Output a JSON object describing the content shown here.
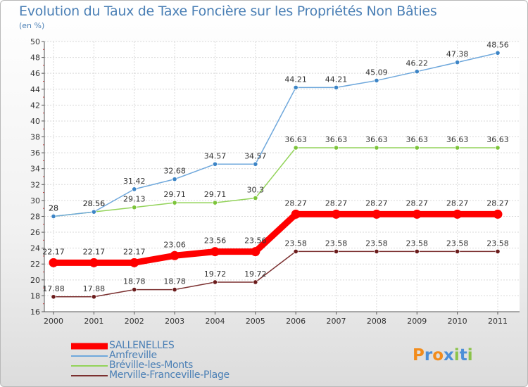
{
  "title": "Evolution du Taux de Taxe Foncière sur les Propriétés Non Bâties",
  "subtitle": "(en %)",
  "logo": {
    "letters": [
      "P",
      "r",
      "o",
      "x",
      "i",
      "t",
      "i"
    ],
    "colors": [
      "#f28c1c",
      "#4c8fd8",
      "#f28c1c",
      "#4c8fd8",
      "#8bc34a",
      "#4c8fd8",
      "#8bc34a"
    ]
  },
  "chart_data": {
    "type": "line",
    "categories": [
      "2000",
      "2001",
      "2002",
      "2003",
      "2004",
      "2005",
      "2006",
      "2007",
      "2008",
      "2009",
      "2010",
      "2011"
    ],
    "ylim": [
      16,
      50
    ],
    "yticks": [
      16,
      18,
      20,
      22,
      24,
      26,
      28,
      30,
      32,
      34,
      36,
      38,
      40,
      42,
      44,
      46,
      48,
      50
    ],
    "grid": true,
    "legend_position": "bottom-left",
    "series": [
      {
        "name": "SALLENELLES",
        "color": "#ff0000",
        "point_color": "#ff0000",
        "emphasis": true,
        "values": [
          22.17,
          22.17,
          22.17,
          23.06,
          23.56,
          23.56,
          28.27,
          28.27,
          28.27,
          28.27,
          28.27,
          28.27
        ],
        "labels": [
          "22.17",
          "22.17",
          "22.17",
          "23.06",
          "23.56",
          "23.56",
          "28.27",
          "28.27",
          "28.27",
          "28.27",
          "28.27",
          "28.27"
        ]
      },
      {
        "name": "Amfreville",
        "color": "#6fa8dc",
        "point_color": "#3d85c6",
        "emphasis": false,
        "values": [
          28,
          28.56,
          31.42,
          32.68,
          34.57,
          34.57,
          44.21,
          44.21,
          45.09,
          46.22,
          47.38,
          48.56
        ],
        "labels": [
          "28",
          "28.56",
          "31.42",
          "32.68",
          "34.57",
          "34.57",
          "44.21",
          "44.21",
          "45.09",
          "46.22",
          "47.38",
          "48.56"
        ]
      },
      {
        "name": "Bréville-les-Monts",
        "color": "#93d35a",
        "point_color": "#7cc43a",
        "emphasis": false,
        "values": [
          28,
          28.56,
          29.13,
          29.71,
          29.71,
          30.3,
          36.63,
          36.63,
          36.63,
          36.63,
          36.63,
          36.63
        ],
        "labels": [
          "28",
          "28.56",
          "29.13",
          "29.71",
          "29.71",
          "30.3",
          "36.63",
          "36.63",
          "36.63",
          "36.63",
          "36.63",
          "36.63"
        ]
      },
      {
        "name": "Merville-Franceville-Plage",
        "color": "#7b3030",
        "point_color": "#6b1c1c",
        "emphasis": false,
        "values": [
          17.88,
          17.88,
          18.78,
          18.78,
          19.72,
          19.72,
          23.58,
          23.58,
          23.58,
          23.58,
          23.58,
          23.58
        ],
        "labels": [
          "17.88",
          "17.88",
          "18.78",
          "18.78",
          "19.72",
          "19.72",
          "23.58",
          "23.58",
          "23.58",
          "23.58",
          "23.58",
          "23.58"
        ]
      }
    ]
  }
}
